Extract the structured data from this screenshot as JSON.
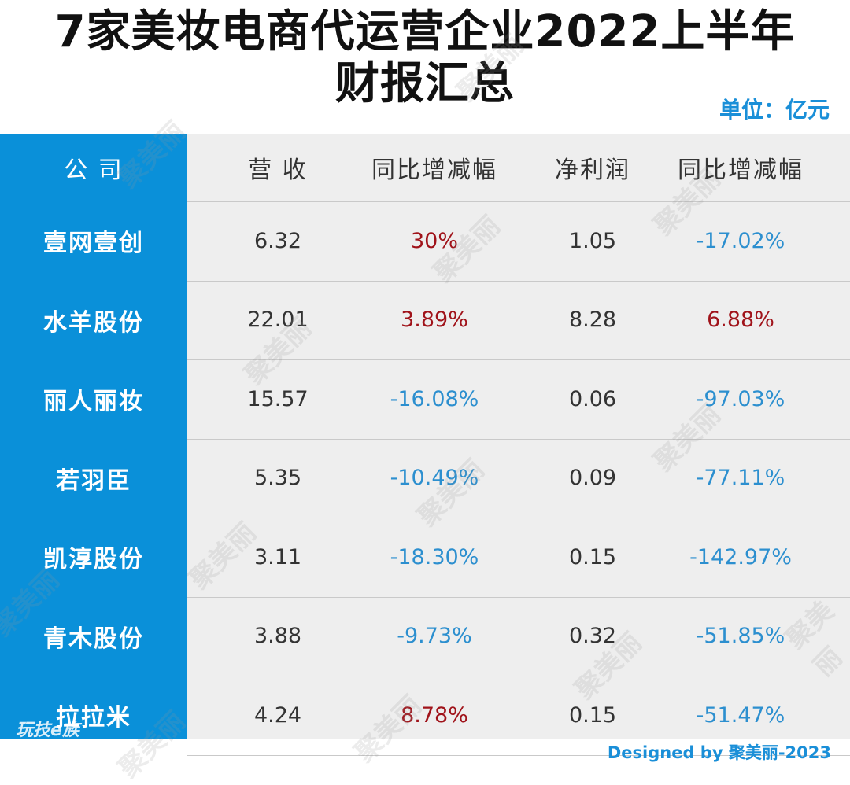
{
  "title": "7家美妆电商代运营企业2022上半年\n财报汇总",
  "title_line1": "7家美妆电商代运营企业2022上半年",
  "title_line2": "财报汇总",
  "unit": "单位：亿元",
  "headers": {
    "company": "公 司",
    "revenue": "营 收",
    "revenue_yoy": "同比增减幅",
    "net_profit": "净利润",
    "profit_yoy": "同比增减幅"
  },
  "rows": [
    {
      "company": "壹网壹创",
      "revenue": "6.32",
      "revenue_yoy": "30%",
      "net_profit": "1.05",
      "profit_yoy": "-17.02%"
    },
    {
      "company": "水羊股份",
      "revenue": "22.01",
      "revenue_yoy": "3.89%",
      "net_profit": "8.28",
      "profit_yoy": "6.88%"
    },
    {
      "company": "丽人丽妆",
      "revenue": "15.57",
      "revenue_yoy": "-16.08%",
      "net_profit": "0.06",
      "profit_yoy": "-97.03%"
    },
    {
      "company": "若羽臣",
      "revenue": "5.35",
      "revenue_yoy": "-10.49%",
      "net_profit": "0.09",
      "profit_yoy": "-77.11%"
    },
    {
      "company": "凯淳股份",
      "revenue": "3.11",
      "revenue_yoy": "-18.30%",
      "net_profit": "0.15",
      "profit_yoy": "-142.97%"
    },
    {
      "company": "青木股份",
      "revenue": "3.88",
      "revenue_yoy": "-9.73%",
      "net_profit": "0.32",
      "profit_yoy": "-51.85%"
    },
    {
      "company": "拉拉米",
      "revenue": "4.24",
      "revenue_yoy": "8.78%",
      "net_profit": "0.15",
      "profit_yoy": "-51.47%"
    }
  ],
  "footer": "Designed by 聚美丽-2023",
  "logo_text": "玩技e族",
  "watermark": "聚美丽",
  "colors": {
    "sidebar": "#0a90d9",
    "accent": "#1a8fd8",
    "positive": "#a0131a",
    "negative": "#2c8fcf"
  }
}
